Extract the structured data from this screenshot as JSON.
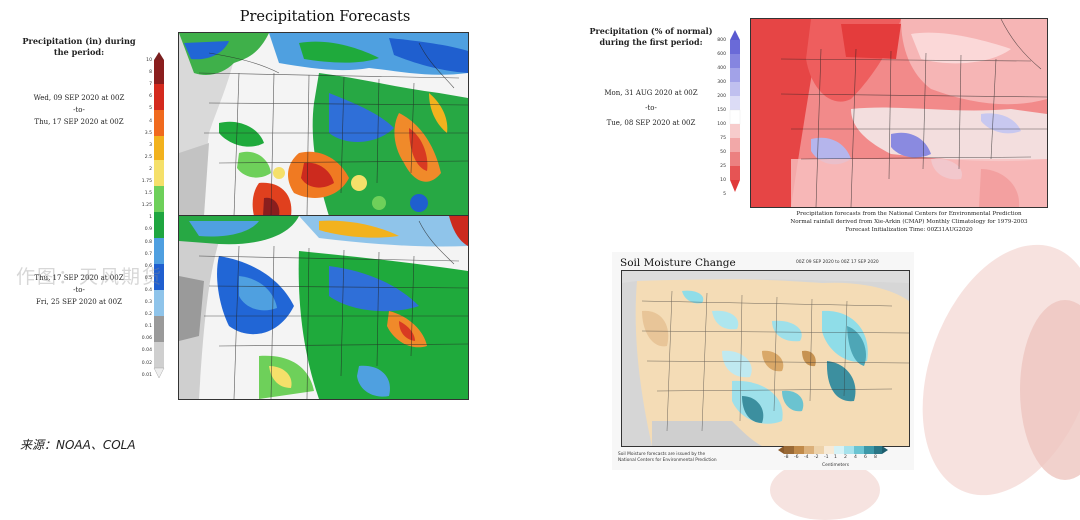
{
  "figure_left": {
    "title": "Precipitation Forecasts",
    "legend_label": "Precipitation (in) during the period:",
    "colorbar_ticks": [
      "10",
      "8",
      "7",
      "6",
      "5",
      "4",
      "3.5",
      "3",
      "2.5",
      "2",
      "1.75",
      "1.5",
      "1.25",
      "1",
      "0.9",
      "0.8",
      "0.7",
      "0.6",
      "0.5",
      "0.4",
      "0.3",
      "0.2",
      "0.1",
      "0.06",
      "0.04",
      "0.02",
      "0.01"
    ],
    "period1": {
      "start": "Wed, 09 SEP 2020 at 00Z",
      "sep": "-to-",
      "end": "Thu, 17 SEP 2020 at 00Z"
    },
    "period2": {
      "start": "Thu, 17 SEP 2020 at 00Z",
      "sep": "-to-",
      "end": "Fri, 25 SEP 2020 at 00Z"
    }
  },
  "figure_right_top": {
    "legend_label": "Precipitation (% of normal) during the first period:",
    "colorbar_ticks": [
      "800",
      "600",
      "400",
      "300",
      "200",
      "150",
      "100",
      "75",
      "50",
      "25",
      "10",
      "5"
    ],
    "period": {
      "start": "Mon, 31 AUG 2020 at 00Z",
      "sep": "-to-",
      "end": "Tue, 08 SEP 2020 at 00Z"
    },
    "caption_lines": [
      "Precipitation forecasts from the National Centers for Environmental Prediction",
      "Normal rainfall derived from Xie-Arkin (CMAP) Monthly Climatology for 1979-2003",
      "Forecast Initialization Time: 00Z31AUG2020"
    ]
  },
  "figure_right_bottom": {
    "title": "Soil Moisture Change",
    "date_range": "00Z 09 SEP 2020 to 00Z 17 SEP 2020",
    "note_lines": [
      "Soil Moisture forecasts are issued by the",
      "National Centers for Environmental Prediction"
    ],
    "colorbar_ticks": [
      "-8",
      "-6",
      "-4",
      "-2",
      "-1",
      "1",
      "2",
      "4",
      "6",
      "8"
    ],
    "unit": "Centimeters"
  },
  "watermark": "作图：天风期货",
  "source": "来源：NOAA、COLA",
  "colors": {
    "bg_petal": "#ecc9c4",
    "wet_green": "#1faa3c",
    "wet_blue": "#2166d6",
    "dry_red": "#e8463b",
    "dry_tan": "#f2d4a8"
  }
}
